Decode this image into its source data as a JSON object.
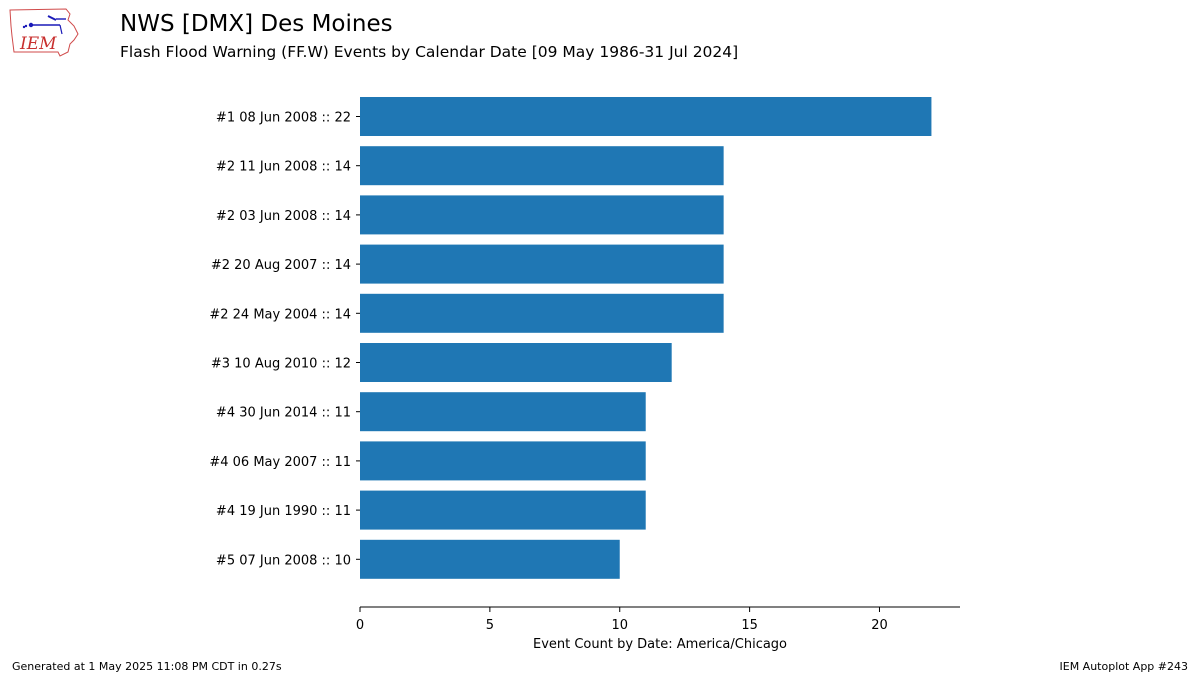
{
  "header": {
    "title": "NWS [DMX] Des Moines",
    "subtitle": "Flash Flood Warning (FF.W) Events by Calendar Date [09 May 1986-31 Jul 2024]",
    "logo_text": "IEM"
  },
  "chart_data": {
    "type": "bar",
    "orientation": "horizontal",
    "categories": [
      "#1  08 Jun 2008 :: 22",
      "#2  11 Jun 2008 :: 14",
      "#2  03 Jun 2008 :: 14",
      "#2  20 Aug 2007 :: 14",
      "#2  24 May 2004 :: 14",
      "#3  10 Aug 2010 :: 12",
      "#4  30 Jun 2014 :: 11",
      "#4  06 May 2007 :: 11",
      "#4  19 Jun 1990 :: 11",
      "#5  07 Jun 2008 :: 10"
    ],
    "values": [
      22,
      14,
      14,
      14,
      14,
      12,
      11,
      11,
      11,
      10
    ],
    "xlabel": "Event Count by Date: America/Chicago",
    "ylabel": "",
    "xlim": [
      0,
      23.1
    ],
    "xticks": [
      0,
      5,
      10,
      15,
      20
    ],
    "bar_color": "#1f77b4",
    "grid": false
  },
  "footer": {
    "left": "Generated at 1 May 2025 11:08 PM CDT in 0.27s",
    "right": "IEM Autoplot App #243"
  }
}
